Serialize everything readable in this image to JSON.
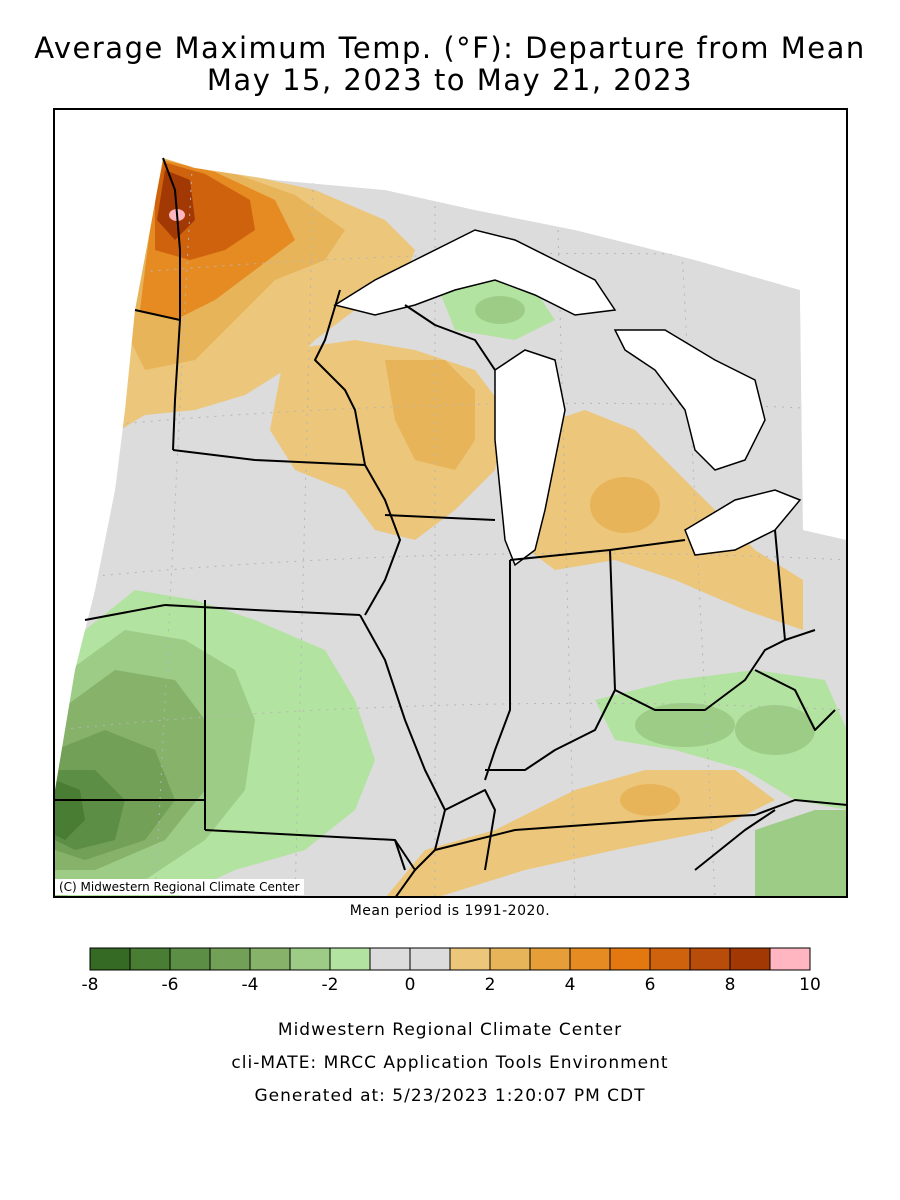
{
  "title_line1": "Average Maximum Temp. (°F): Departure from Mean",
  "title_line2": "May 15, 2023 to May 21, 2023",
  "copyright": "(C) Midwestern Regional Climate Center",
  "mean_period": "Mean period is 1991-2020.",
  "legend": {
    "colors": [
      "#356a24",
      "#4a7d34",
      "#5d8e45",
      "#71a056",
      "#86b26a",
      "#9ccc86",
      "#b3e3a0",
      "#dcdcdc",
      "#dcdcdc",
      "#ecc67a",
      "#e8b45a",
      "#e69e38",
      "#e68a22",
      "#e37710",
      "#cf620c",
      "#b84c0a",
      "#a23804",
      "#ffb6c1"
    ],
    "tick_labels": [
      "-8",
      "-6",
      "-4",
      "-2",
      "0",
      "2",
      "4",
      "6",
      "8",
      "10"
    ]
  },
  "footer": {
    "line1": "Midwestern Regional Climate Center",
    "line2": "cli-MATE: MRCC Application Tools Environment",
    "line3": "Generated at: 5/23/2023 1:20:07 PM CDT"
  }
}
